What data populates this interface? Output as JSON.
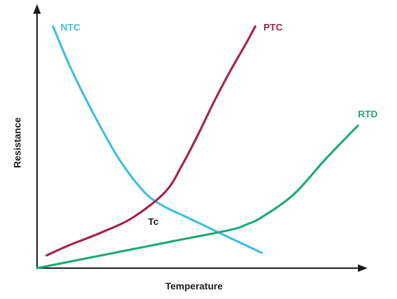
{
  "chart_data": {
    "type": "line",
    "title": "",
    "xlabel": "Temperature",
    "ylabel": "Resistance",
    "xlim": [
      0,
      100
    ],
    "ylim": [
      0,
      100
    ],
    "grid": false,
    "legend": "none",
    "ticks": "none",
    "series": [
      {
        "name": "NTC",
        "color": "#40bde3",
        "x": [
          5,
          10,
          15,
          20,
          25,
          30,
          35,
          40,
          45,
          50,
          55,
          60,
          65,
          70
        ],
        "y": [
          95,
          80,
          67,
          55,
          44,
          35,
          28,
          24,
          21,
          18,
          15,
          12,
          9,
          6
        ]
      },
      {
        "name": "PTC",
        "color": "#a3234f",
        "x": [
          3,
          10,
          20,
          30,
          40,
          45,
          50,
          55,
          60,
          65,
          68
        ],
        "y": [
          5,
          9,
          14,
          20,
          30,
          40,
          52,
          65,
          77,
          88,
          95
        ]
      },
      {
        "name": "RTD",
        "color": "#1eaa73",
        "x": [
          0,
          20,
          40,
          60,
          65,
          70,
          80,
          90,
          100
        ],
        "y": [
          0,
          5,
          10,
          15,
          17,
          20,
          29,
          43,
          56
        ]
      }
    ],
    "annotations": [
      {
        "text": "Tc"
      }
    ]
  }
}
